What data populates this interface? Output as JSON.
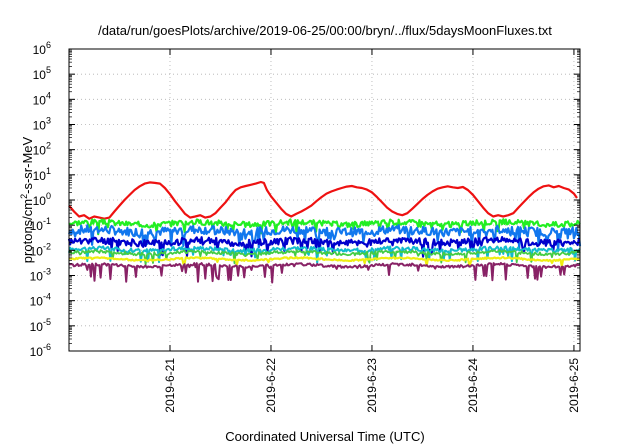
{
  "chart_data": {
    "type": "line",
    "title": "/data/run/goesPlots/archive/2019-06-25/00:00/bryn/../flux/5daysMoonFluxes.txt",
    "xlabel": "Coordinated Universal Time (UTC)",
    "ylabel": "protons/cm²-s-sr-MeV",
    "ylabel_base": "protons/cm",
    "ylabel_exp": "2",
    "ylabel_rest": "-s-sr-MeV",
    "x_unit": "days",
    "xlim": [
      0,
      5.06
    ],
    "ylim_log10": [
      -6,
      6
    ],
    "yscale": "log",
    "grid": true,
    "x_ticks": [
      {
        "x": 1.0,
        "label": "2019-6-21"
      },
      {
        "x": 2.0,
        "label": "2019-6-22"
      },
      {
        "x": 3.0,
        "label": "2019-6-23"
      },
      {
        "x": 4.0,
        "label": "2019-6-24"
      },
      {
        "x": 5.0,
        "label": "2019-6-25"
      }
    ],
    "y_ticks": [
      {
        "exp": 6,
        "label": "10",
        "sup": "6"
      },
      {
        "exp": 5,
        "label": "10",
        "sup": "5"
      },
      {
        "exp": 4,
        "label": "10",
        "sup": "4"
      },
      {
        "exp": 3,
        "label": "10",
        "sup": "3"
      },
      {
        "exp": 2,
        "label": "10",
        "sup": "2"
      },
      {
        "exp": 1,
        "label": "10",
        "sup": "1"
      },
      {
        "exp": 0,
        "label": "10",
        "sup": "0"
      },
      {
        "exp": -1,
        "label": "10",
        "sup": "-1"
      },
      {
        "exp": -2,
        "label": "10",
        "sup": "-2"
      },
      {
        "exp": -3,
        "label": "10",
        "sup": "-3"
      },
      {
        "exp": -4,
        "label": "10",
        "sup": "-4"
      },
      {
        "exp": -5,
        "label": "10",
        "sup": "-5"
      },
      {
        "exp": -6,
        "label": "10",
        "sup": "-6"
      }
    ],
    "series": [
      {
        "color": "#ee1111",
        "width": 2.2,
        "points": [
          [
            0.0,
            0.6
          ],
          [
            0.05,
            0.35
          ],
          [
            0.1,
            0.22
          ],
          [
            0.15,
            0.25
          ],
          [
            0.2,
            0.18
          ],
          [
            0.25,
            0.22
          ],
          [
            0.3,
            0.2
          ],
          [
            0.35,
            0.18
          ],
          [
            0.4,
            0.2
          ],
          [
            0.45,
            0.35
          ],
          [
            0.5,
            0.6
          ],
          [
            0.55,
            1.0
          ],
          [
            0.6,
            1.6
          ],
          [
            0.65,
            2.5
          ],
          [
            0.7,
            3.5
          ],
          [
            0.75,
            4.5
          ],
          [
            0.8,
            5.0
          ],
          [
            0.85,
            4.8
          ],
          [
            0.9,
            4.5
          ],
          [
            0.95,
            3.0
          ],
          [
            1.0,
            1.7
          ],
          [
            1.05,
            0.9
          ],
          [
            1.1,
            0.5
          ],
          [
            1.15,
            0.28
          ],
          [
            1.2,
            0.2
          ],
          [
            1.25,
            0.22
          ],
          [
            1.3,
            0.25
          ],
          [
            1.35,
            0.2
          ],
          [
            1.4,
            0.22
          ],
          [
            1.45,
            0.3
          ],
          [
            1.5,
            0.5
          ],
          [
            1.55,
            0.8
          ],
          [
            1.6,
            1.5
          ],
          [
            1.65,
            2.5
          ],
          [
            1.7,
            3.2
          ],
          [
            1.75,
            3.6
          ],
          [
            1.8,
            4.0
          ],
          [
            1.85,
            4.5
          ],
          [
            1.9,
            5.2
          ],
          [
            1.93,
            4.8
          ],
          [
            1.96,
            2.5
          ],
          [
            2.0,
            1.4
          ],
          [
            2.05,
            0.8
          ],
          [
            2.1,
            0.45
          ],
          [
            2.15,
            0.28
          ],
          [
            2.2,
            0.22
          ],
          [
            2.25,
            0.28
          ],
          [
            2.3,
            0.35
          ],
          [
            2.35,
            0.45
          ],
          [
            2.4,
            0.6
          ],
          [
            2.45,
            0.9
          ],
          [
            2.5,
            1.3
          ],
          [
            2.55,
            1.8
          ],
          [
            2.6,
            2.2
          ],
          [
            2.65,
            2.6
          ],
          [
            2.7,
            3.0
          ],
          [
            2.75,
            3.4
          ],
          [
            2.8,
            3.6
          ],
          [
            2.85,
            3.2
          ],
          [
            2.9,
            3.0
          ],
          [
            2.95,
            2.6
          ],
          [
            3.0,
            2.0
          ],
          [
            3.05,
            1.3
          ],
          [
            3.1,
            0.8
          ],
          [
            3.15,
            0.5
          ],
          [
            3.2,
            0.35
          ],
          [
            3.25,
            0.28
          ],
          [
            3.3,
            0.25
          ],
          [
            3.35,
            0.3
          ],
          [
            3.4,
            0.45
          ],
          [
            3.45,
            0.7
          ],
          [
            3.5,
            1.1
          ],
          [
            3.55,
            1.6
          ],
          [
            3.6,
            2.2
          ],
          [
            3.65,
            2.8
          ],
          [
            3.7,
            3.2
          ],
          [
            3.75,
            3.5
          ],
          [
            3.8,
            3.2
          ],
          [
            3.85,
            3.0
          ],
          [
            3.9,
            3.3
          ],
          [
            3.95,
            2.5
          ],
          [
            4.0,
            1.6
          ],
          [
            4.05,
            0.9
          ],
          [
            4.1,
            0.5
          ],
          [
            4.15,
            0.3
          ],
          [
            4.2,
            0.22
          ],
          [
            4.25,
            0.25
          ],
          [
            4.3,
            0.22
          ],
          [
            4.35,
            0.25
          ],
          [
            4.4,
            0.3
          ],
          [
            4.45,
            0.5
          ],
          [
            4.5,
            0.8
          ],
          [
            4.55,
            1.3
          ],
          [
            4.6,
            2.0
          ],
          [
            4.65,
            2.8
          ],
          [
            4.7,
            3.5
          ],
          [
            4.75,
            3.8
          ],
          [
            4.8,
            3.2
          ],
          [
            4.85,
            3.6
          ],
          [
            4.9,
            3.0
          ],
          [
            4.95,
            2.6
          ],
          [
            5.0,
            1.8
          ],
          [
            5.03,
            1.2
          ]
        ]
      },
      {
        "color": "#22ee22",
        "width": 2.2,
        "base": 0.12,
        "amp": 0.22,
        "seed": 3,
        "dipRate": 0.08,
        "dipMag": 0.4
      },
      {
        "color": "#1177ee",
        "width": 2.2,
        "base": 0.06,
        "amp": 0.35,
        "seed": 7,
        "dipRate": 0.12,
        "dipMag": 0.6
      },
      {
        "color": "#0000cc",
        "width": 2.2,
        "base": 0.022,
        "amp": 0.28,
        "seed": 11,
        "dipRate": 0.1,
        "dipMag": 0.6
      },
      {
        "color": "#11bbcc",
        "width": 2.0,
        "base": 0.011,
        "amp": 0.15,
        "seed": 17,
        "dipRate": 0.1,
        "dipMag": 0.5
      },
      {
        "color": "#44cc44",
        "width": 1.8,
        "base": 0.008,
        "amp": 0.12,
        "seed": 19,
        "dipRate": 0.08,
        "dipMag": 0.4
      },
      {
        "color": "#eeee11",
        "width": 2.2,
        "base": 0.0045,
        "amp": 0.06,
        "seed": 23,
        "dipRate": 0.05,
        "dipMag": 0.3
      },
      {
        "color": "#882266",
        "width": 2.0,
        "base": 0.0025,
        "amp": 0.1,
        "seed": 29,
        "dipRate": 0.12,
        "dipMag": 0.7
      }
    ]
  }
}
